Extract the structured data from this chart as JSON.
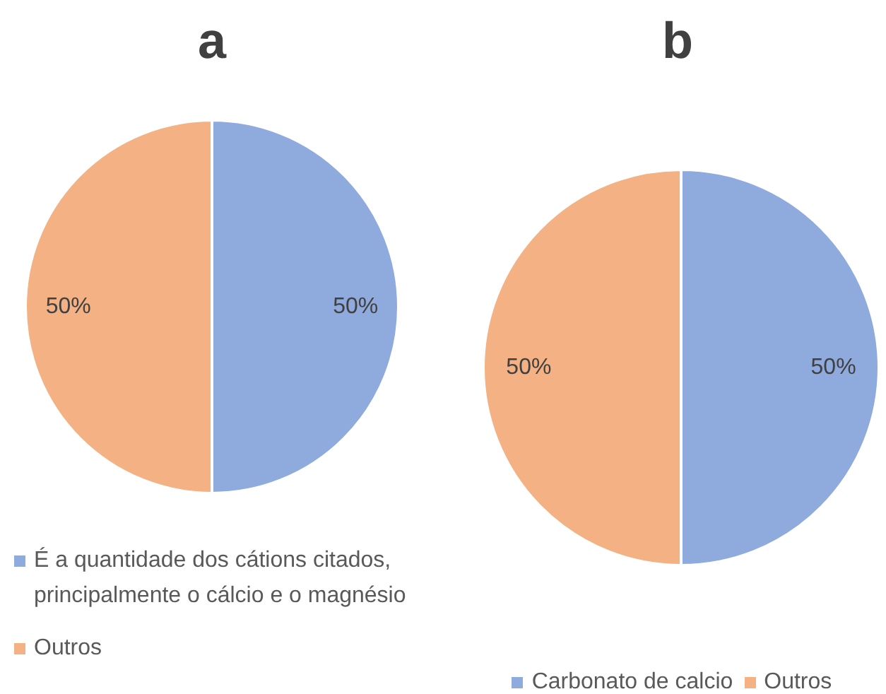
{
  "chart_data": [
    {
      "type": "pie",
      "title": "a",
      "categories": [
        "É a quantidade dos cátions citados, principalmente o cálcio e o magnésio",
        "Outros"
      ],
      "values": [
        50,
        50
      ],
      "colors": [
        "#8faadc",
        "#f4b183"
      ],
      "value_labels": [
        "50%",
        "50%"
      ],
      "legend": "bottom left"
    },
    {
      "type": "pie",
      "title": "b",
      "categories": [
        "Carbonato de calcio",
        "Outros"
      ],
      "values": [
        50,
        50
      ],
      "colors": [
        "#8faadc",
        "#f4b183"
      ],
      "value_labels": [
        "50%",
        "50%"
      ],
      "legend": "bottom"
    }
  ]
}
